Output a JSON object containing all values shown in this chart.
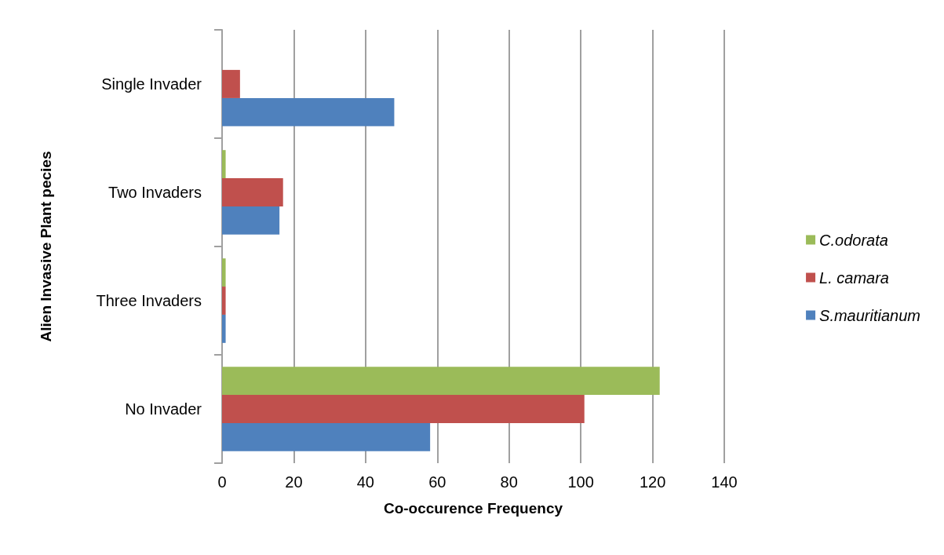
{
  "chart_data": {
    "type": "bar",
    "orientation": "horizontal",
    "xlabel": "Co-occurence Frequency",
    "ylabel": "Alien Invasive Plant pecies",
    "categories": [
      "Single Invader",
      "Two Invaders",
      "Three Invaders",
      "No Invader"
    ],
    "series": [
      {
        "name": "C.odorata",
        "color": "#9bbb59",
        "values": [
          0,
          1,
          1,
          122
        ]
      },
      {
        "name": "L. camara",
        "color": "#c0504d",
        "values": [
          5,
          17,
          1,
          101
        ]
      },
      {
        "name": "S.mauritianum",
        "color": "#4f81bd",
        "values": [
          48,
          16,
          1,
          58
        ]
      }
    ],
    "xlim": [
      0,
      140
    ],
    "xticks": [
      0,
      20,
      40,
      60,
      80,
      100,
      120,
      140
    ],
    "grid": "x",
    "legend": "right"
  }
}
